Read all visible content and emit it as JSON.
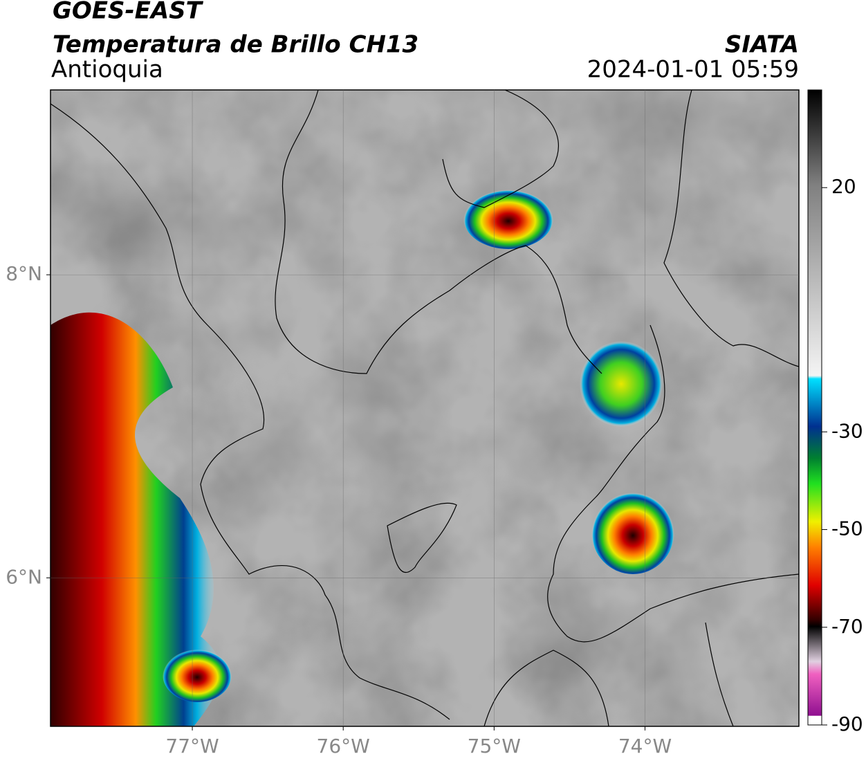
{
  "header": {
    "title": "GOES-EAST",
    "subtitle": "Temperatura de Brillo CH13",
    "region": "Antioquia",
    "source": "SIATA",
    "datetime": "2024-01-01 05:59"
  },
  "map": {
    "xlim": [
      -77.94,
      -72.98
    ],
    "ylim": [
      5.02,
      9.22
    ],
    "xticks": [
      {
        "value": -77,
        "label": "77°W"
      },
      {
        "value": -76,
        "label": "76°W"
      },
      {
        "value": -75,
        "label": "75°W"
      },
      {
        "value": -74,
        "label": "74°W"
      }
    ],
    "yticks": [
      {
        "value": 8,
        "label": "8°N"
      },
      {
        "value": 6,
        "label": "6°N"
      }
    ]
  },
  "colorbar": {
    "lim": [
      -90,
      40
    ],
    "ticks": [
      20,
      -30,
      -50,
      -70,
      -90
    ]
  }
}
